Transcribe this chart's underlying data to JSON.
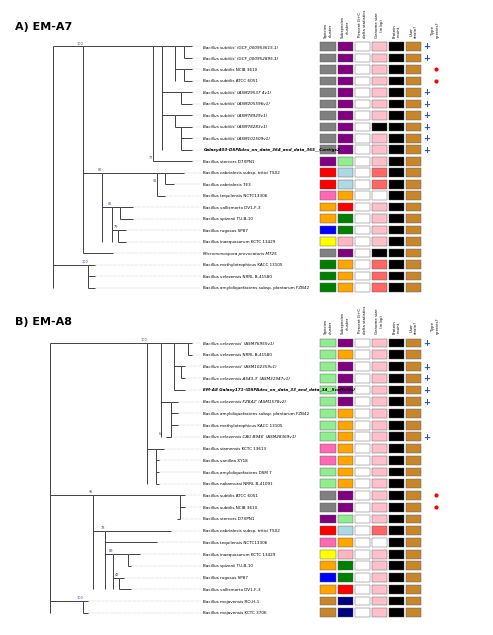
{
  "panel_A_label": "A) EM-A7",
  "panel_B_label": "B) EM-A8",
  "col_headers": [
    "Species\ncluster",
    "Subspecies\ncluster",
    "Percent G+C\ndelta statistics",
    "Genome size\n(in bp)",
    "Protein\ncount",
    "User\nstrain?",
    "Type\nspecies?"
  ],
  "panel_A_taxa": [
    "'Bacillus subtilis' (GCF_000953615.1)",
    "'Bacillus subtilis' (GCF_000952895.1)",
    "Bacillus subtilis NCIB 3610",
    "Bacillus subtilis ATCC 6051",
    "'Bacillus subtilis' (ASM29537 4v1)",
    "'Bacillus subtilis' (ASM205596v1)",
    "'Bacillus subtilis' (ASM78929v1)",
    "'Bacillus subtilis' (ASM78283v1)",
    "'Bacillus subtilis' (ASM101509v1)",
    "'Galaxy403-DSPAdes_on_data_364_and_data_365__Contigs2'",
    "Bacillus stercors D7XPN1",
    "Bacillus cabrialesis subsp. tritici TS02",
    "Bacillus cabrialesis TE3",
    "Bacillus tequilensis NCTC13306",
    "Bacillus vallismorto DV1-F-3",
    "Bacillus spizenii TU-B-10",
    "Bacillus rugosus SP87",
    "Bacillus inaequosorum KCTC 13429",
    "'Micromonospora provocatoris MT25'",
    "Bacillus methylotrophicus KACC 13105",
    "Bacillus velezensis NRRL B-41580",
    "Bacillus amyloliquefaciens subsp. plantarum FZB42"
  ],
  "panel_A_col1": [
    "#808080",
    "#808080",
    "#808080",
    "#808080",
    "#808080",
    "#808080",
    "#808080",
    "#808080",
    "#808080",
    "#808080",
    "#800080",
    "#ff0000",
    "#ff0000",
    "#ff69b4",
    "#ffa500",
    "#ffa500",
    "#0000ff",
    "#ffff00",
    "#808080",
    "#008000",
    "#008000",
    "#008000"
  ],
  "panel_A_col2": [
    "#800080",
    "#800080",
    "#800080",
    "#800080",
    "#800080",
    "#800080",
    "#800080",
    "#800080",
    "#800080",
    "#800080",
    "#90ee90",
    "#add8e6",
    "#add8e6",
    "#ffa500",
    "#ff0000",
    "#008000",
    "#008000",
    "#ffb6c1",
    "#800080",
    "#ffa500",
    "#ffa500",
    "#ffa500"
  ],
  "panel_A_col3": [
    "#ffffff",
    "#ffffff",
    "#ffffff",
    "#ffffff",
    "#ffffff",
    "#ffffff",
    "#ffffff",
    "#ffffff",
    "#ffffff",
    "#ffffff",
    "#ffffff",
    "#ffffff",
    "#ffffff",
    "#ffffff",
    "#ffffff",
    "#ffffff",
    "#ffffff",
    "#ffffff",
    "#ffffff",
    "#ffffff",
    "#ffffff",
    "#ffffff"
  ],
  "panel_A_col4": [
    "#ffc0cb",
    "#ffc0cb",
    "#ffc0cb",
    "#ffc0cb",
    "#ffc0cb",
    "#ffc0cb",
    "#ffc0cb",
    "#000000",
    "#ffc0cb",
    "#ffc0cb",
    "#ffc0cb",
    "#ff6666",
    "#ff6666",
    "#ffffff",
    "#ffc0cb",
    "#ffc0cb",
    "#ffc0cb",
    "#ffc0cb",
    "#000000",
    "#ff6666",
    "#ff6666",
    "#ff6666"
  ],
  "panel_A_col5": [
    "#000000",
    "#000000",
    "#000000",
    "#000000",
    "#000000",
    "#000000",
    "#000000",
    "#000000",
    "#000000",
    "#000000",
    "#000000",
    "#000000",
    "#000000",
    "#000000",
    "#000000",
    "#000000",
    "#000000",
    "#000000",
    "#000000",
    "#000000",
    "#000000",
    "#000000"
  ],
  "panel_A_col6": [
    "#c8862c",
    "#c8862c",
    "#c8862c",
    "#c8862c",
    "#c8862c",
    "#c8862c",
    "#c8862c",
    "#c8862c",
    "#c8862c",
    "#c8862c",
    "#c8862c",
    "#c8862c",
    "#c8862c",
    "#c8862c",
    "#c8862c",
    "#c8862c",
    "#c8862c",
    "#c8862c",
    "#c8862c",
    "#c8862c",
    "#c8862c",
    "#c8862c"
  ],
  "panel_A_user": [
    true,
    true,
    false,
    false,
    true,
    true,
    true,
    true,
    true,
    true,
    false,
    false,
    false,
    false,
    false,
    false,
    false,
    false,
    false,
    false,
    false,
    false
  ],
  "panel_A_red_dot": [
    false,
    false,
    true,
    true,
    false,
    false,
    false,
    false,
    false,
    false,
    false,
    false,
    false,
    false,
    false,
    false,
    false,
    false,
    false,
    false,
    false,
    false
  ],
  "panel_B_taxa": [
    "'Bacillus velezensis' (ASM76955v1)",
    "Bacillus velezensis NRRL B-41580",
    "'Bacillus velezensis' (ASM102359v1)",
    "'Bacillus velezensis AS43.3' (ASM31947v1)",
    "'EM-A8 Galaxy171-(DSPAdes_on_data_33_and_data_34__Scaffolds)'",
    "'Bacillus velezensis FZB42' (ASM1578v2)",
    "Bacillus amyloliquefaciens subsp. plantarum FZB42",
    "Bacillus methylotrophicus KACC 13105",
    "'Bacillus velezensis CAU B946' (ASM28369v1)",
    "Bacillus siamensis KCTC 13613",
    "Bacillus vanillea XY18",
    "Bacillus amyloliquefaciens DSM 7",
    "Bacillus nakamurai NRRL B-41091",
    "Bacillus subtilis ATCC 6051",
    "Bacillus subtilis NCIB 3610",
    "Bacillus stercors D7XPN1",
    "Bacillus cabrialesis subsp. tritici TS02",
    "Bacillus tequilensis NCTC13306",
    "Bacillus inaequosorum KCTC 13429",
    "Bacillus spizenii TU-B-10",
    "Bacillus rugosus SP87",
    "Bacillus vallismorto DV1-F-3",
    "Bacillus mojavensis RO-H-1",
    "Bacillus mojavensis KCTC 3706"
  ],
  "panel_B_col1": [
    "#90ee90",
    "#90ee90",
    "#90ee90",
    "#90ee90",
    "#90ee90",
    "#90ee90",
    "#90ee90",
    "#90ee90",
    "#90ee90",
    "#ff69b4",
    "#ff69b4",
    "#90ee90",
    "#90ee90",
    "#808080",
    "#808080",
    "#800080",
    "#ff0000",
    "#ff69b4",
    "#ffff00",
    "#ffa500",
    "#0000ff",
    "#ffa500",
    "#c8862c",
    "#c8862c"
  ],
  "panel_B_col2": [
    "#800080",
    "#ffa500",
    "#800080",
    "#800080",
    "#800080",
    "#800080",
    "#ffa500",
    "#ffa500",
    "#ffa500",
    "#ffa500",
    "#ffa500",
    "#ffa500",
    "#ffa500",
    "#800080",
    "#800080",
    "#90ee90",
    "#add8e6",
    "#ffa500",
    "#ffb6c1",
    "#008000",
    "#008000",
    "#ff0000",
    "#000080",
    "#000080"
  ],
  "panel_B_col3": [
    "#ffffff",
    "#ffffff",
    "#ffffff",
    "#ffffff",
    "#ffffff",
    "#ffffff",
    "#ffffff",
    "#ffffff",
    "#ffffff",
    "#ffffff",
    "#ffffff",
    "#ffffff",
    "#ffffff",
    "#ffffff",
    "#ffffff",
    "#ffffff",
    "#ffffff",
    "#ffffff",
    "#ffffff",
    "#ffffff",
    "#ffffff",
    "#ffffff",
    "#ffffff",
    "#ffffff"
  ],
  "panel_B_col4": [
    "#ffc0cb",
    "#ffc0cb",
    "#ffc0cb",
    "#ffc0cb",
    "#ffc0cb",
    "#ffc0cb",
    "#ffc0cb",
    "#ffc0cb",
    "#ffc0cb",
    "#ffc0cb",
    "#ffc0cb",
    "#ffc0cb",
    "#ffc0cb",
    "#ffc0cb",
    "#ffc0cb",
    "#ffc0cb",
    "#ff6666",
    "#ffffff",
    "#ffc0cb",
    "#ffc0cb",
    "#ffc0cb",
    "#ffc0cb",
    "#ffc0cb",
    "#ffc0cb"
  ],
  "panel_B_col5": [
    "#000000",
    "#000000",
    "#000000",
    "#000000",
    "#000000",
    "#000000",
    "#000000",
    "#000000",
    "#000000",
    "#000000",
    "#000000",
    "#000000",
    "#000000",
    "#000000",
    "#000000",
    "#000000",
    "#000000",
    "#000000",
    "#000000",
    "#000000",
    "#000000",
    "#000000",
    "#000000",
    "#000000"
  ],
  "panel_B_col6": [
    "#c8862c",
    "#c8862c",
    "#c8862c",
    "#c8862c",
    "#c8862c",
    "#c8862c",
    "#c8862c",
    "#c8862c",
    "#c8862c",
    "#c8862c",
    "#c8862c",
    "#c8862c",
    "#c8862c",
    "#c8862c",
    "#c8862c",
    "#c8862c",
    "#c8862c",
    "#c8862c",
    "#c8862c",
    "#c8862c",
    "#c8862c",
    "#c8862c",
    "#c8862c",
    "#c8862c"
  ],
  "panel_B_user": [
    true,
    false,
    true,
    true,
    true,
    true,
    false,
    false,
    true,
    false,
    false,
    false,
    false,
    false,
    false,
    false,
    false,
    false,
    false,
    false,
    false,
    false,
    false,
    false
  ],
  "panel_B_red_dot": [
    false,
    false,
    false,
    false,
    false,
    false,
    false,
    false,
    false,
    false,
    false,
    false,
    false,
    true,
    true,
    false,
    false,
    false,
    false,
    false,
    false,
    false,
    false,
    false
  ]
}
